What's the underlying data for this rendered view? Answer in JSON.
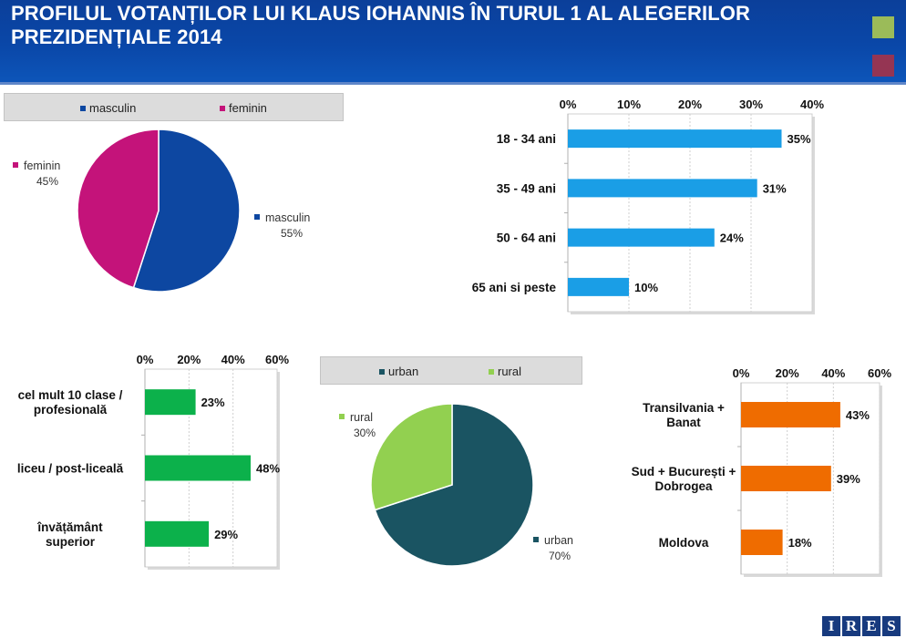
{
  "header": {
    "title": "PROFILUL VOTANȚILOR LUI KLAUS IOHANNIS ÎN TURUL 1 AL ALEGERILOR PREZIDENȚIALE 2014",
    "accent_colors": [
      "#9bbb59",
      "#953553"
    ]
  },
  "logo": {
    "letters": [
      "I",
      "R",
      "E",
      "S"
    ]
  },
  "chart_data": [
    {
      "type": "pie",
      "id": "gender",
      "legend": [
        "masculin",
        "feminin"
      ],
      "legend_position": "top",
      "slices": [
        {
          "name": "masculin",
          "value": 55,
          "label": "55%",
          "color": "#0d47a1"
        },
        {
          "name": "feminin",
          "value": 45,
          "label": "45%",
          "color": "#c4137a"
        }
      ]
    },
    {
      "type": "bar",
      "orientation": "horizontal",
      "id": "age",
      "categories": [
        "18 - 34 ani",
        "35 - 49 ani",
        "50 - 64 ani",
        "65 ani si peste"
      ],
      "values": [
        35,
        31,
        24,
        10
      ],
      "value_labels": [
        "35%",
        "31%",
        "24%",
        "10%"
      ],
      "xlim": [
        0,
        40
      ],
      "ticks": [
        "0%",
        "10%",
        "20%",
        "30%",
        "40%"
      ],
      "color": "#1a9ee6",
      "grid": true
    },
    {
      "type": "bar",
      "orientation": "horizontal",
      "id": "education",
      "categories": [
        "cel mult 10 clase / profesională",
        "liceu / post-liceală",
        "învățământ superior"
      ],
      "category_lines": [
        [
          "cel mult 10 clase /",
          "profesională"
        ],
        [
          "liceu / post-liceală"
        ],
        [
          "învățământ",
          "superior"
        ]
      ],
      "values": [
        23,
        48,
        29
      ],
      "value_labels": [
        "23%",
        "48%",
        "29%"
      ],
      "xlim": [
        0,
        60
      ],
      "ticks": [
        "0%",
        "20%",
        "40%",
        "60%"
      ],
      "color": "#0cb14b",
      "grid": true
    },
    {
      "type": "pie",
      "id": "residence",
      "legend": [
        "urban",
        "rural"
      ],
      "legend_position": "top",
      "slices": [
        {
          "name": "urban",
          "value": 70,
          "label": "70%",
          "color": "#1a5462"
        },
        {
          "name": "rural",
          "value": 30,
          "label": "30%",
          "color": "#92d050"
        }
      ]
    },
    {
      "type": "bar",
      "orientation": "horizontal",
      "id": "region",
      "categories": [
        "Transilvania + Banat",
        "Sud + București + Dobrogea",
        "Moldova"
      ],
      "category_lines": [
        [
          "Transilvania +",
          "Banat"
        ],
        [
          "Sud + București +",
          "Dobrogea"
        ],
        [
          "Moldova"
        ]
      ],
      "values": [
        43,
        39,
        18
      ],
      "value_labels": [
        "43%",
        "39%",
        "18%"
      ],
      "xlim": [
        0,
        60
      ],
      "ticks": [
        "0%",
        "20%",
        "40%",
        "60%"
      ],
      "color": "#ef6c00",
      "grid": true
    }
  ]
}
